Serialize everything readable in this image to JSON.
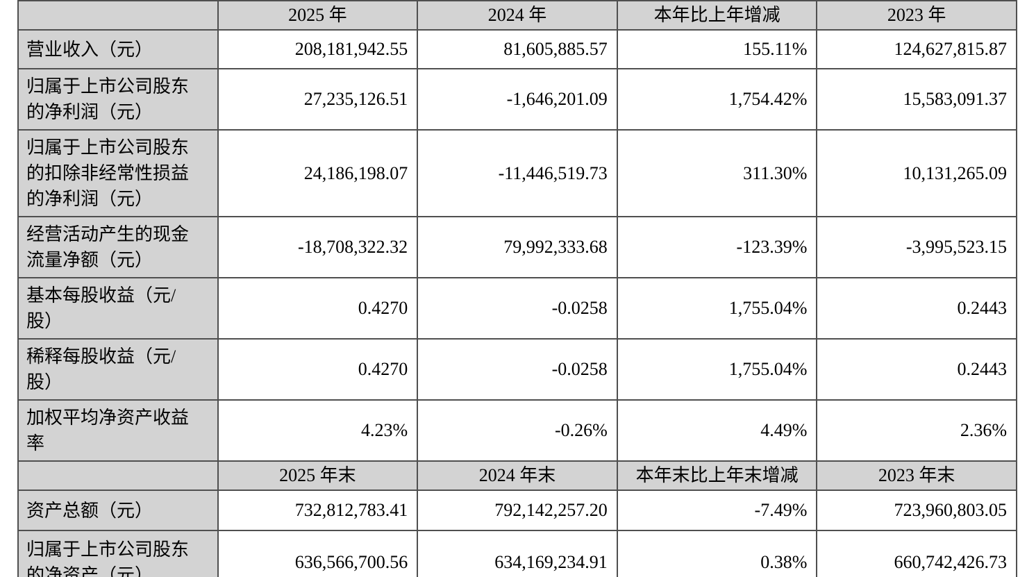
{
  "colors": {
    "header_bg": "#d3d3d3",
    "label_col_bg": "#d3d3d3",
    "data_cell_bg": "#ffffff",
    "border": "#4f4f4f",
    "text": "#000000"
  },
  "table": {
    "sections": [
      {
        "corner_label": "",
        "column_headers": [
          "2025 年",
          "2024 年",
          "本年比上年增减",
          "2023 年"
        ],
        "rows": [
          {
            "label": "营业收入（元）",
            "values": [
              "208,181,942.55",
              "81,605,885.57",
              "155.11%",
              "124,627,815.87"
            ]
          },
          {
            "label": "归属于上市公司股东\n的净利润（元）",
            "values": [
              "27,235,126.51",
              "-1,646,201.09",
              "1,754.42%",
              "15,583,091.37"
            ]
          },
          {
            "label": "归属于上市公司股东\n的扣除非经常性损益\n的净利润（元）",
            "values": [
              "24,186,198.07",
              "-11,446,519.73",
              "311.30%",
              "10,131,265.09"
            ]
          },
          {
            "label": "经营活动产生的现金\n流量净额（元）",
            "values": [
              "-18,708,322.32",
              "79,992,333.68",
              "-123.39%",
              "-3,995,523.15"
            ]
          },
          {
            "label": "基本每股收益（元/\n股）",
            "values": [
              "0.4270",
              "-0.0258",
              "1,755.04%",
              "0.2443"
            ]
          },
          {
            "label": "稀释每股收益（元/\n股）",
            "values": [
              "0.4270",
              "-0.0258",
              "1,755.04%",
              "0.2443"
            ]
          },
          {
            "label": "加权平均净资产收益\n率",
            "values": [
              "4.23%",
              "-0.26%",
              "4.49%",
              "2.36%"
            ]
          }
        ]
      },
      {
        "corner_label": "",
        "column_headers": [
          "2025 年末",
          "2024 年末",
          "本年末比上年末增减",
          "2023 年末"
        ],
        "rows": [
          {
            "label": "资产总额（元）",
            "values": [
              "732,812,783.41",
              "792,142,257.20",
              "-7.49%",
              "723,960,803.05"
            ]
          },
          {
            "label": "归属于上市公司股东\n的净资产（元）",
            "values": [
              "636,566,700.56",
              "634,169,234.91",
              "0.38%",
              "660,742,426.73"
            ]
          }
        ]
      }
    ]
  }
}
